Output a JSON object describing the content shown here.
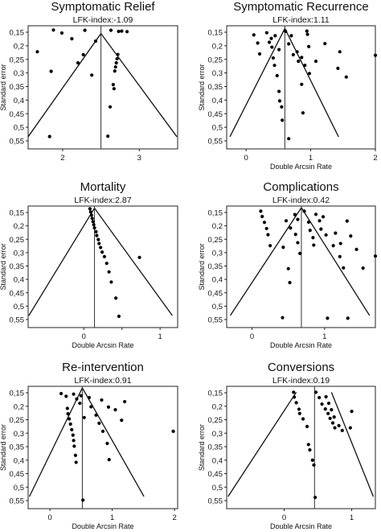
{
  "chart_data": [
    {
      "type": "scatter",
      "title": "Symptomatic Relief",
      "subtitle": "LFK-index:-1.09",
      "xlabel": "",
      "ylabel": "Standard error",
      "xlim": [
        1.55,
        3.5
      ],
      "ylim": [
        0.15,
        0.55
      ],
      "y_reversed": true,
      "x_ticks": [
        2,
        3
      ],
      "x_tick_labels": [
        "2",
        "3"
      ],
      "y_ticks": [
        0.15,
        0.2,
        0.25,
        0.3,
        0.35,
        0.4,
        0.45,
        0.5,
        0.55
      ],
      "y_tick_labels": [
        "0,15",
        "0,2",
        "0,25",
        "0,3",
        "0,35",
        "0,4",
        "0,45",
        "0,5",
        "0,55"
      ],
      "pooled_estimate": 2.5,
      "funnel": {
        "apex": [
          2.5,
          0.155
        ],
        "base_left": 1.55,
        "base_right": 3.49,
        "base_se": 0.535
      },
      "points": [
        [
          1.88,
          0.142
        ],
        [
          1.99,
          0.153
        ],
        [
          2.12,
          0.174
        ],
        [
          2.29,
          0.143
        ],
        [
          1.67,
          0.222
        ],
        [
          1.85,
          0.294
        ],
        [
          2.2,
          0.263
        ],
        [
          2.27,
          0.233
        ],
        [
          2.38,
          0.308
        ],
        [
          2.43,
          0.183
        ],
        [
          2.63,
          0.143
        ],
        [
          2.77,
          0.146
        ],
        [
          2.73,
          0.147
        ],
        [
          2.84,
          0.148
        ],
        [
          2.72,
          0.232
        ],
        [
          2.71,
          0.248
        ],
        [
          2.7,
          0.263
        ],
        [
          2.69,
          0.278
        ],
        [
          2.68,
          0.293
        ],
        [
          2.66,
          0.343
        ],
        [
          2.67,
          0.358
        ],
        [
          2.62,
          0.425
        ],
        [
          1.83,
          0.534
        ],
        [
          2.59,
          0.533
        ]
      ]
    },
    {
      "type": "scatter",
      "title": "Symptomatic Recurrence",
      "subtitle": "LFK-index:1.11",
      "xlabel": "Double Arcsin Rate",
      "ylabel": "Standard error",
      "xlim": [
        -0.3,
        2.0
      ],
      "ylim": [
        0.15,
        0.55
      ],
      "y_reversed": true,
      "x_ticks": [
        0,
        1,
        2
      ],
      "x_tick_labels": [
        "0",
        "1",
        "2"
      ],
      "y_ticks": [
        0.15,
        0.2,
        0.25,
        0.3,
        0.35,
        0.4,
        0.45,
        0.5,
        0.55
      ],
      "y_tick_labels": [
        "0,15",
        "0,2",
        "0,25",
        "0,3",
        "0,35",
        "0,4",
        "0,45",
        "0,5",
        "0,55"
      ],
      "pooled_estimate": 0.6,
      "funnel": {
        "apex": [
          0.6,
          0.136
        ],
        "base_left": -0.25,
        "base_right": 1.43,
        "base_se": 0.535
      },
      "points": [
        [
          0.12,
          0.16
        ],
        [
          0.18,
          0.19
        ],
        [
          0.21,
          0.23
        ],
        [
          0.32,
          0.152
        ],
        [
          0.39,
          0.173
        ],
        [
          0.45,
          0.163
        ],
        [
          0.51,
          0.214
        ],
        [
          0.36,
          0.187
        ],
        [
          0.4,
          0.205
        ],
        [
          0.42,
          0.245
        ],
        [
          0.44,
          0.272
        ],
        [
          0.48,
          0.31
        ],
        [
          0.51,
          0.368
        ],
        [
          0.52,
          0.403
        ],
        [
          0.55,
          0.425
        ],
        [
          0.56,
          0.474
        ],
        [
          0.61,
          0.147
        ],
        [
          0.7,
          0.163
        ],
        [
          0.66,
          0.193
        ],
        [
          0.73,
          0.233
        ],
        [
          0.79,
          0.222
        ],
        [
          0.81,
          0.257
        ],
        [
          0.86,
          0.243
        ],
        [
          0.91,
          0.272
        ],
        [
          0.94,
          0.146
        ],
        [
          0.97,
          0.203
        ],
        [
          0.95,
          0.158
        ],
        [
          0.98,
          0.302
        ],
        [
          0.86,
          0.342
        ],
        [
          0.88,
          0.447
        ],
        [
          1.08,
          0.257
        ],
        [
          1.42,
          0.283
        ],
        [
          1.55,
          0.315
        ],
        [
          1.22,
          0.192
        ],
        [
          1.45,
          0.222
        ],
        [
          2.0,
          0.235
        ],
        [
          0.66,
          0.542
        ]
      ]
    },
    {
      "type": "scatter",
      "title": "Mortality",
      "subtitle": "LFK-index:2.87",
      "xlabel": "Double Arcsin Rate",
      "ylabel": "Standard error",
      "xlim": [
        -0.73,
        1.23
      ],
      "ylim": [
        0.15,
        0.55
      ],
      "y_reversed": true,
      "x_ticks": [
        0,
        0.5,
        1
      ],
      "x_tick_labels": [
        "0",
        "",
        "1"
      ],
      "y_ticks": [
        0.15,
        0.2,
        0.25,
        0.3,
        0.35,
        0.4,
        0.45,
        0.5,
        0.55
      ],
      "y_tick_labels": [
        "0,15",
        "0,2",
        "0,25",
        "0,3",
        "0,35",
        "0,4",
        "0,45",
        "0,5",
        "0,55"
      ],
      "pooled_estimate": 0.14,
      "funnel": {
        "apex": [
          0.14,
          0.134
        ],
        "base_left": -0.72,
        "base_right": 1.16,
        "base_se": 0.535
      },
      "points": [
        [
          0.08,
          0.136
        ],
        [
          0.09,
          0.148
        ],
        [
          0.1,
          0.16
        ],
        [
          0.11,
          0.172
        ],
        [
          0.12,
          0.184
        ],
        [
          0.13,
          0.196
        ],
        [
          0.14,
          0.208
        ],
        [
          0.16,
          0.222
        ],
        [
          0.17,
          0.236
        ],
        [
          0.19,
          0.251
        ],
        [
          0.2,
          0.266
        ],
        [
          0.22,
          0.281
        ],
        [
          0.24,
          0.298
        ],
        [
          0.27,
          0.315
        ],
        [
          0.3,
          0.34
        ],
        [
          0.33,
          0.372
        ],
        [
          0.36,
          0.41
        ],
        [
          0.42,
          0.47
        ],
        [
          0.73,
          0.318
        ],
        [
          0.46,
          0.538
        ]
      ]
    },
    {
      "type": "scatter",
      "title": "Complications",
      "subtitle": "LFK-index:0.42",
      "xlabel": "Double Arcsin Rate",
      "ylabel": "Standard error",
      "xlim": [
        -0.35,
        1.7
      ],
      "ylim": [
        0.15,
        0.55
      ],
      "y_reversed": true,
      "x_ticks": [
        0,
        1
      ],
      "x_tick_labels": [
        "0",
        "1"
      ],
      "y_ticks": [
        0.15,
        0.2,
        0.25,
        0.3,
        0.35,
        0.4,
        0.45,
        0.5,
        0.55
      ],
      "y_tick_labels": [
        "0,15",
        "0,2",
        "0,25",
        "0,3",
        "0,35",
        "0,4",
        "0,45",
        "0,5",
        "0,55"
      ],
      "pooled_estimate": 0.68,
      "funnel": {
        "apex": [
          0.68,
          0.132
        ],
        "base_left": -0.3,
        "base_right": 1.62,
        "base_se": 0.535
      },
      "points": [
        [
          0.12,
          0.145
        ],
        [
          0.14,
          0.165
        ],
        [
          0.17,
          0.187
        ],
        [
          0.2,
          0.21
        ],
        [
          0.22,
          0.233
        ],
        [
          0.25,
          0.274
        ],
        [
          0.47,
          0.181
        ],
        [
          0.53,
          0.208
        ],
        [
          0.59,
          0.158
        ],
        [
          0.63,
          0.176
        ],
        [
          0.6,
          0.232
        ],
        [
          0.63,
          0.263
        ],
        [
          0.66,
          0.303
        ],
        [
          0.43,
          0.28
        ],
        [
          0.5,
          0.36
        ],
        [
          0.52,
          0.412
        ],
        [
          0.42,
          0.543
        ],
        [
          0.72,
          0.145
        ],
        [
          0.78,
          0.186
        ],
        [
          0.8,
          0.217
        ],
        [
          0.84,
          0.244
        ],
        [
          0.85,
          0.272
        ],
        [
          0.88,
          0.157
        ],
        [
          0.93,
          0.181
        ],
        [
          0.95,
          0.212
        ],
        [
          0.98,
          0.166
        ],
        [
          1.02,
          0.234
        ],
        [
          1.12,
          0.274
        ],
        [
          1.21,
          0.315
        ],
        [
          1.26,
          0.357
        ],
        [
          1.22,
          0.266
        ],
        [
          1.15,
          0.227
        ],
        [
          1.31,
          0.182
        ],
        [
          1.36,
          0.238
        ],
        [
          1.44,
          0.288
        ],
        [
          1.53,
          0.358
        ],
        [
          1.7,
          0.313
        ],
        [
          1.04,
          0.545
        ],
        [
          1.32,
          0.545
        ]
      ]
    },
    {
      "type": "scatter",
      "title": "Re-intervention",
      "subtitle": "LFK-index:0.91",
      "xlabel": "Double Arcsin Rate",
      "ylabel": "Standard error",
      "xlim": [
        -0.35,
        2.05
      ],
      "ylim": [
        0.15,
        0.55
      ],
      "y_reversed": true,
      "x_ticks": [
        0,
        1,
        2
      ],
      "x_tick_labels": [
        "0",
        "1",
        "2"
      ],
      "y_ticks": [
        0.15,
        0.2,
        0.25,
        0.3,
        0.35,
        0.4,
        0.45,
        0.5,
        0.55
      ],
      "y_tick_labels": [
        "0,15",
        "0,2",
        "0,25",
        "0,3",
        "0,35",
        "0,4",
        "0,45",
        "0,5",
        "0,55"
      ],
      "pooled_estimate": 0.52,
      "funnel": {
        "apex": [
          0.52,
          0.132
        ],
        "base_left": -0.33,
        "base_right": 1.51,
        "base_se": 0.535
      },
      "points": [
        [
          0.18,
          0.153
        ],
        [
          0.26,
          0.163
        ],
        [
          0.28,
          0.208
        ],
        [
          0.29,
          0.228
        ],
        [
          0.31,
          0.247
        ],
        [
          0.33,
          0.266
        ],
        [
          0.35,
          0.287
        ],
        [
          0.37,
          0.307
        ],
        [
          0.38,
          0.327
        ],
        [
          0.39,
          0.348
        ],
        [
          0.41,
          0.382
        ],
        [
          0.42,
          0.408
        ],
        [
          0.38,
          0.155
        ],
        [
          0.43,
          0.173
        ],
        [
          0.48,
          0.189
        ],
        [
          0.5,
          0.161
        ],
        [
          0.55,
          0.242
        ],
        [
          0.53,
          0.548
        ],
        [
          0.63,
          0.168
        ],
        [
          0.66,
          0.202
        ],
        [
          0.74,
          0.233
        ],
        [
          0.79,
          0.263
        ],
        [
          0.85,
          0.293
        ],
        [
          0.92,
          0.338
        ],
        [
          0.95,
          0.398
        ],
        [
          0.83,
          0.177
        ],
        [
          0.94,
          0.203
        ],
        [
          1.05,
          0.213
        ],
        [
          1.15,
          0.252
        ],
        [
          1.2,
          0.183
        ],
        [
          1.98,
          0.293
        ]
      ]
    },
    {
      "type": "scatter",
      "title": "Conversions",
      "subtitle": "LFK-index:0.19",
      "xlabel": "Double Arcsin Rate",
      "ylabel": "Standard error",
      "xlim": [
        -0.85,
        1.35
      ],
      "ylim": [
        0.15,
        0.55
      ],
      "y_reversed": true,
      "x_ticks": [
        0,
        1
      ],
      "x_tick_labels": [
        "0",
        "1"
      ],
      "y_ticks": [
        0.15,
        0.2,
        0.25,
        0.3,
        0.35,
        0.4,
        0.45,
        0.5,
        0.55
      ],
      "y_tick_labels": [
        "0,15",
        "0,2",
        "0,25",
        "0,3",
        "0,35",
        "0,4",
        "0,45",
        "0,5",
        "0,55"
      ],
      "pooled_estimate": 0.45,
      "funnel": {
        "apex": [
          0.18,
          0.148
        ],
        "apex_right": [
          0.7,
          0.148
        ],
        "base_left": -0.83,
        "base_right": 1.32,
        "base_se": 0.535
      },
      "points": [
        [
          0.14,
          0.148
        ],
        [
          0.15,
          0.166
        ],
        [
          0.18,
          0.187
        ],
        [
          0.22,
          0.211
        ],
        [
          0.23,
          0.227
        ],
        [
          0.28,
          0.247
        ],
        [
          0.34,
          0.275
        ],
        [
          0.36,
          0.342
        ],
        [
          0.38,
          0.362
        ],
        [
          0.42,
          0.4
        ],
        [
          0.44,
          0.418
        ],
        [
          0.47,
          0.148
        ],
        [
          0.52,
          0.168
        ],
        [
          0.56,
          0.192
        ],
        [
          0.61,
          0.21
        ],
        [
          0.65,
          0.227
        ],
        [
          0.68,
          0.245
        ],
        [
          0.72,
          0.262
        ],
        [
          0.75,
          0.28
        ],
        [
          0.62,
          0.165
        ],
        [
          0.66,
          0.189
        ],
        [
          0.7,
          0.213
        ],
        [
          0.74,
          0.24
        ],
        [
          0.81,
          0.272
        ],
        [
          0.86,
          0.29
        ],
        [
          1.0,
          0.219
        ],
        [
          0.98,
          0.28
        ],
        [
          0.46,
          0.538
        ]
      ]
    }
  ]
}
